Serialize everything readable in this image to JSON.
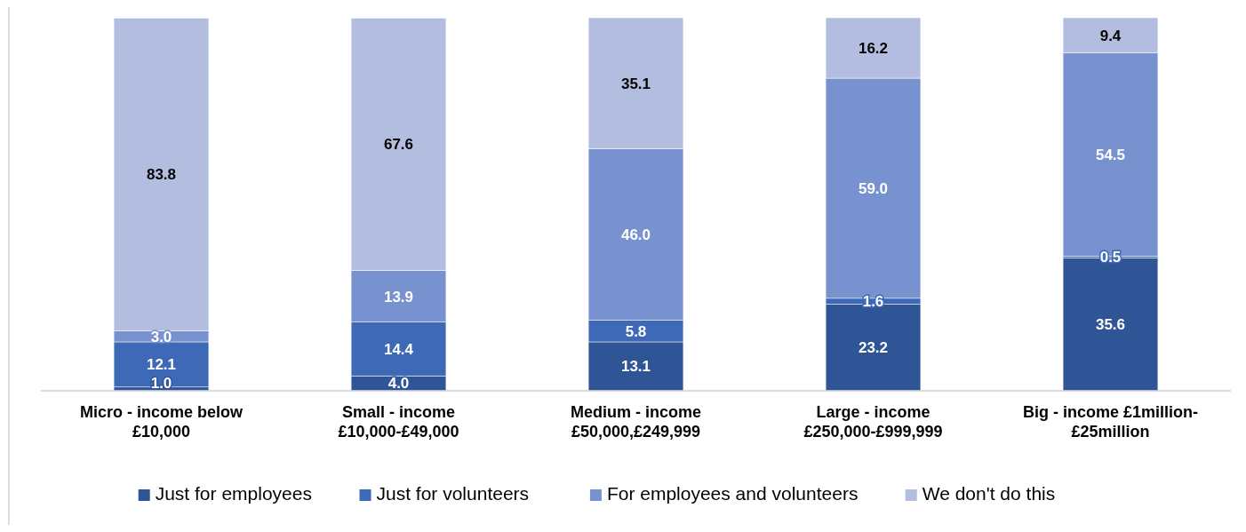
{
  "chart_data": {
    "type": "bar",
    "stacked": true,
    "legend": "bottom",
    "categories": [
      "Micro - income below\n£10,000",
      "Small - income\n£10,000-£49,000",
      "Medium - income\n£50,000,£249,999",
      "Large - income\n£250,000-£999,999",
      "Big - income £1million-\n£25million"
    ],
    "series": [
      {
        "name": "Just for employees",
        "color": "#2f5597",
        "values": [
          1.0,
          4.0,
          13.1,
          23.2,
          35.6
        ],
        "value_labels": [
          "1.0",
          "4.0",
          "13.1",
          "23.2",
          "35.6"
        ]
      },
      {
        "name": "Just for volunteers",
        "color": "#3e69b7",
        "values": [
          12.1,
          14.4,
          5.8,
          1.6,
          0.5
        ],
        "value_labels": [
          "12.1",
          "14.4",
          "5.8",
          "1.6",
          "0.5"
        ]
      },
      {
        "name": "For employees and volunteers",
        "color": "#7891cf",
        "values": [
          3.0,
          13.9,
          46.0,
          59.0,
          54.5
        ],
        "value_labels": [
          "3.0",
          "13.9",
          "46.0",
          "59.0",
          "54.5"
        ]
      },
      {
        "name": "We don't do this",
        "color": "#b3bde0",
        "values": [
          83.8,
          67.6,
          35.1,
          16.2,
          9.4
        ],
        "value_labels": [
          "83.8",
          "67.6",
          "35.1",
          "16.2",
          "9.4"
        ]
      }
    ]
  }
}
